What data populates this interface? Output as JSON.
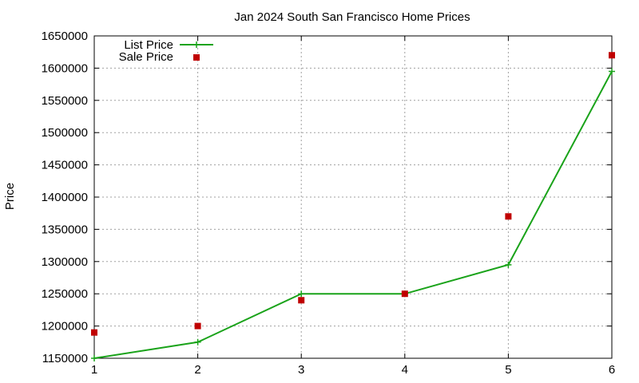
{
  "chart_data": {
    "type": "line",
    "title": "Jan 2024 South San Francisco Home Prices",
    "xlabel": "",
    "ylabel": "Price",
    "x": [
      1,
      2,
      3,
      4,
      5,
      6
    ],
    "xlim": [
      1,
      6
    ],
    "ylim": [
      1150000,
      1650000
    ],
    "x_ticks": [
      "1",
      "2",
      "3",
      "4",
      "5",
      "6"
    ],
    "y_ticks": [
      "1150000",
      "1200000",
      "1250000",
      "1300000",
      "1350000",
      "1400000",
      "1450000",
      "1500000",
      "1550000",
      "1600000",
      "1650000"
    ],
    "grid": true,
    "legend_position": "top-left",
    "series": [
      {
        "name": "List Price",
        "style": "line+cross",
        "color": "#1aa31a",
        "values": [
          1150000,
          1175000,
          1250000,
          1250000,
          1295000,
          1595000
        ]
      },
      {
        "name": "Sale Price",
        "style": "square-points",
        "color": "#c00000",
        "values": [
          1190000,
          1200000,
          1240000,
          1250000,
          1370000,
          1620000
        ]
      }
    ]
  }
}
